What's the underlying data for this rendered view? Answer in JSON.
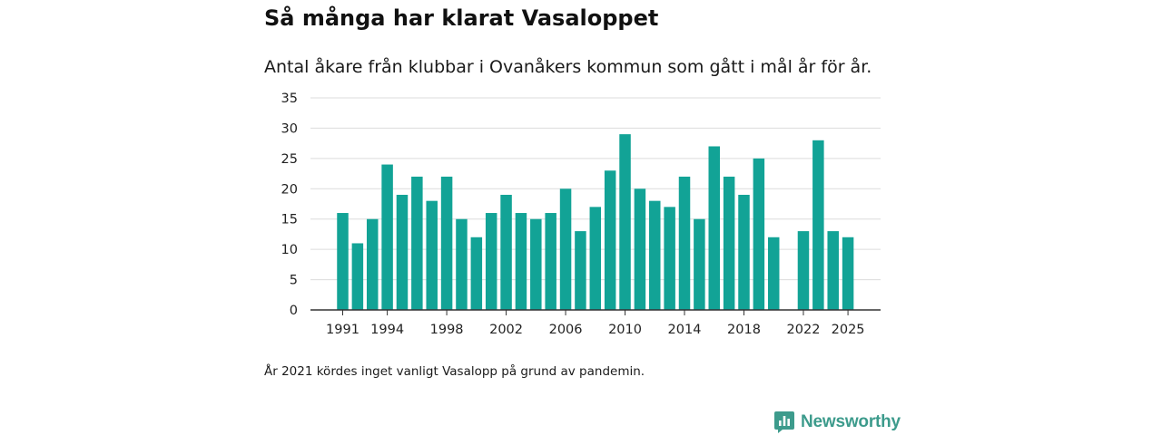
{
  "title": "Så många har klarat Vasaloppet",
  "subtitle": "Antal åkare från klubbar i Ovanåkers kommun som gått i mål år för år.",
  "note": "År 2021 kördes inget vanligt Vasalopp på grund av pandemin.",
  "brand": {
    "name": "Newsworthy",
    "icon": "newsworthy-logo-icon"
  },
  "colors": {
    "bar": "#12a396",
    "grid": "#dcdcdc",
    "axis": "#333333",
    "brand": "#3d9b8c"
  },
  "chart_data": {
    "type": "bar",
    "title": "Så många har klarat Vasaloppet",
    "xlabel": "",
    "ylabel": "",
    "ylim": [
      0,
      35
    ],
    "yticks": [
      0,
      5,
      10,
      15,
      20,
      25,
      30,
      35
    ],
    "xticks": [
      1991,
      1994,
      1998,
      2002,
      2006,
      2010,
      2014,
      2018,
      2022,
      2025
    ],
    "categories": [
      1991,
      1992,
      1993,
      1994,
      1995,
      1996,
      1997,
      1998,
      1999,
      2000,
      2001,
      2002,
      2003,
      2004,
      2005,
      2006,
      2007,
      2008,
      2009,
      2010,
      2011,
      2012,
      2013,
      2014,
      2015,
      2016,
      2017,
      2018,
      2019,
      2020,
      2021,
      2022,
      2023,
      2024,
      2025
    ],
    "values": [
      16,
      11,
      15,
      24,
      19,
      22,
      18,
      22,
      15,
      12,
      16,
      19,
      16,
      15,
      16,
      20,
      13,
      17,
      23,
      29,
      20,
      18,
      17,
      22,
      15,
      27,
      22,
      19,
      25,
      12,
      null,
      13,
      28,
      13,
      12
    ],
    "grid": true
  }
}
